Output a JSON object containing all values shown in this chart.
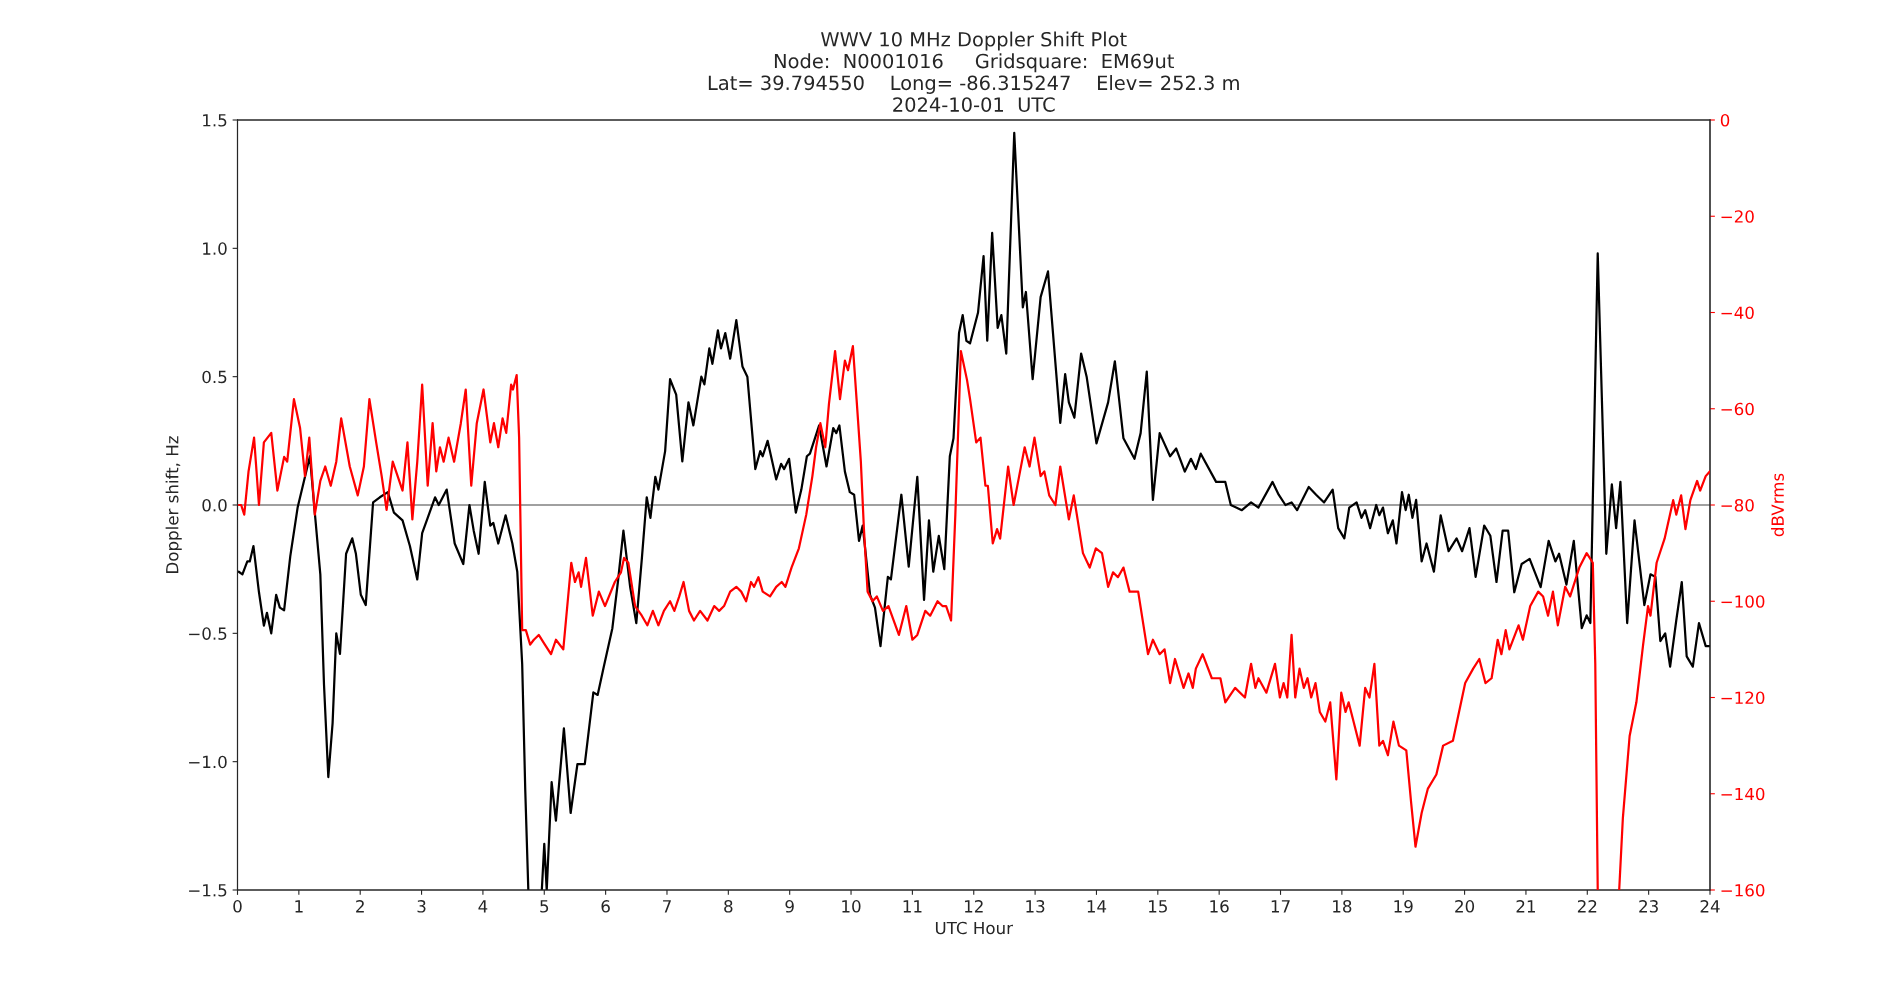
{
  "chart_data": {
    "type": "line",
    "title": "WWV 10 MHz Doppler Shift Plot\nNode:  N0001016     Gridsquare:  EM69ut\nLat= 39.794550    Long= -86.315247    Elev= 252.3 m\n2024-10-01  UTC",
    "xlabel": "UTC Hour",
    "ylabel": "Doppler shift, Hz",
    "y2label": "dBVrms",
    "xlim": [
      0,
      24
    ],
    "xticks": [
      0,
      1,
      2,
      3,
      4,
      5,
      6,
      7,
      8,
      9,
      10,
      11,
      12,
      13,
      14,
      15,
      16,
      17,
      18,
      19,
      20,
      21,
      22,
      23,
      24
    ],
    "ylim": [
      -1.5,
      1.5
    ],
    "yticks": [
      {
        "value": -1.5,
        "label": "−1.5"
      },
      {
        "value": -1.0,
        "label": "−1.0"
      },
      {
        "value": -0.5,
        "label": "−0.5"
      },
      {
        "value": 0,
        "label": "0.0"
      },
      {
        "value": 0.5,
        "label": "0.5"
      },
      {
        "value": 1.0,
        "label": "1.0"
      },
      {
        "value": 1.5,
        "label": "1.5"
      }
    ],
    "y2lim": [
      -160,
      0
    ],
    "y2ticks": [
      {
        "value": -160,
        "label": "−160"
      },
      {
        "value": -140,
        "label": "−140"
      },
      {
        "value": -120,
        "label": "−120"
      },
      {
        "value": -100,
        "label": "−100"
      },
      {
        "value": -80,
        "label": "−80"
      },
      {
        "value": -60,
        "label": "−60"
      },
      {
        "value": -40,
        "label": "−40"
      },
      {
        "value": -20,
        "label": "−20"
      },
      {
        "value": 0,
        "label": "0"
      }
    ],
    "ref_lines": [
      {
        "axis": "y",
        "value": 0,
        "color": "#808080"
      }
    ],
    "grid": false,
    "legend": false,
    "marker": "none",
    "line_style": "solid",
    "series": [
      {
        "color": "#000000",
        "x": [
          0.02,
          0.08,
          0.16,
          0.2,
          0.26,
          0.35,
          0.43,
          0.48,
          0.55,
          0.63,
          0.69,
          0.76,
          0.86,
          0.98,
          1.1,
          1.18,
          1.26,
          1.35,
          1.41,
          1.48,
          1.55,
          1.61,
          1.67,
          1.77,
          1.87,
          1.93,
          2.01,
          2.09,
          2.21,
          2.32,
          2.45,
          2.55,
          2.69,
          2.81,
          2.93,
          3.01,
          3.1,
          3.22,
          3.28,
          3.41,
          3.54,
          3.68,
          3.78,
          3.85,
          3.93,
          4.03,
          4.12,
          4.17,
          4.25,
          4.37,
          4.48,
          4.56,
          4.64,
          4.69,
          4.74,
          4.85,
          4.96,
          5.0,
          5.04,
          5.12,
          5.19,
          5.32,
          5.43,
          5.54,
          5.66,
          5.8,
          5.87,
          5.97,
          6.11,
          6.2,
          6.29,
          6.4,
          6.5,
          6.59,
          6.67,
          6.73,
          6.81,
          6.86,
          6.97,
          7.05,
          7.15,
          7.25,
          7.35,
          7.43,
          7.56,
          7.61,
          7.69,
          7.74,
          7.83,
          7.88,
          7.95,
          8.03,
          8.13,
          8.23,
          8.31,
          8.44,
          8.52,
          8.56,
          8.64,
          8.78,
          8.86,
          8.91,
          8.99,
          9.1,
          9.19,
          9.28,
          9.33,
          9.48,
          9.6,
          9.71,
          9.76,
          9.81,
          9.9,
          9.98,
          10.05,
          10.13,
          10.19,
          10.31,
          10.39,
          10.48,
          10.6,
          10.65,
          10.82,
          10.94,
          11.08,
          11.19,
          11.27,
          11.34,
          11.43,
          11.52,
          11.61,
          11.67,
          11.76,
          11.82,
          11.88,
          11.94,
          12.07,
          12.16,
          12.22,
          12.3,
          12.39,
          12.45,
          12.53,
          12.66,
          12.8,
          12.85,
          12.96,
          13.09,
          13.21,
          13.41,
          13.49,
          13.55,
          13.64,
          13.75,
          13.84,
          14.0,
          14.19,
          14.3,
          14.44,
          14.62,
          14.72,
          14.82,
          14.92,
          15.03,
          15.2,
          15.3,
          15.44,
          15.54,
          15.62,
          15.7,
          15.95,
          16.1,
          16.19,
          16.37,
          16.52,
          16.64,
          16.87,
          16.97,
          17.08,
          17.18,
          17.27,
          17.46,
          17.58,
          17.71,
          17.85,
          17.94,
          18.04,
          18.12,
          18.24,
          18.32,
          18.38,
          18.46,
          18.56,
          18.61,
          18.67,
          18.75,
          18.83,
          18.89,
          18.98,
          19.04,
          19.09,
          19.15,
          19.21,
          19.3,
          19.38,
          19.5,
          19.61,
          19.74,
          19.87,
          19.96,
          20.08,
          20.18,
          20.32,
          20.42,
          20.52,
          20.62,
          20.71,
          20.81,
          20.93,
          21.06,
          21.24,
          21.37,
          21.48,
          21.54,
          21.66,
          21.78,
          21.91,
          21.99,
          22.05,
          22.17,
          22.31,
          22.4,
          22.47,
          22.54,
          22.65,
          22.77,
          22.93,
          23.03,
          23.11,
          23.19,
          23.27,
          23.35,
          23.45,
          23.54,
          23.62,
          23.72,
          23.82,
          23.93,
          24.0
        ],
        "values": [
          -0.26,
          -0.27,
          -0.22,
          -0.22,
          -0.16,
          -0.34,
          -0.47,
          -0.42,
          -0.5,
          -0.35,
          -0.4,
          -0.41,
          -0.2,
          -0.01,
          0.11,
          0.19,
          -0.03,
          -0.27,
          -0.7,
          -1.06,
          -0.85,
          -0.5,
          -0.58,
          -0.19,
          -0.13,
          -0.19,
          -0.35,
          -0.39,
          0.01,
          0.03,
          0.05,
          -0.03,
          -0.06,
          -0.16,
          -0.29,
          -0.11,
          -0.05,
          0.03,
          0.0,
          0.06,
          -0.15,
          -0.23,
          0.0,
          -0.1,
          -0.19,
          0.09,
          -0.08,
          -0.07,
          -0.15,
          -0.04,
          -0.15,
          -0.26,
          -0.62,
          -1.11,
          -1.5,
          null,
          -1.5,
          -1.32,
          -1.5,
          -1.08,
          -1.23,
          -0.87,
          -1.2,
          -1.01,
          -1.01,
          -0.73,
          -0.74,
          -0.63,
          -0.48,
          -0.3,
          -0.1,
          -0.32,
          -0.46,
          -0.21,
          0.03,
          -0.05,
          0.11,
          0.06,
          0.21,
          0.49,
          0.43,
          0.17,
          0.4,
          0.31,
          0.5,
          0.47,
          0.61,
          0.55,
          0.68,
          0.61,
          0.67,
          0.57,
          0.72,
          0.54,
          0.5,
          0.14,
          0.21,
          0.19,
          0.25,
          0.1,
          0.16,
          0.14,
          0.18,
          -0.03,
          0.06,
          0.19,
          0.2,
          0.31,
          0.15,
          0.3,
          0.28,
          0.31,
          0.13,
          0.05,
          0.04,
          -0.14,
          -0.08,
          -0.35,
          -0.4,
          -0.55,
          -0.28,
          -0.29,
          0.04,
          -0.24,
          0.11,
          -0.37,
          -0.06,
          -0.26,
          -0.12,
          -0.25,
          0.19,
          0.26,
          0.67,
          0.74,
          0.64,
          0.63,
          0.75,
          0.97,
          0.64,
          1.06,
          0.69,
          0.74,
          0.59,
          1.45,
          0.77,
          0.83,
          0.49,
          0.81,
          0.91,
          0.32,
          0.51,
          0.4,
          0.34,
          0.59,
          0.5,
          0.24,
          0.4,
          0.56,
          0.26,
          0.18,
          0.28,
          0.52,
          0.02,
          0.28,
          0.19,
          0.22,
          0.13,
          0.18,
          0.14,
          0.2,
          0.09,
          0.09,
          0.0,
          -0.02,
          0.01,
          -0.01,
          0.09,
          0.04,
          0.0,
          0.01,
          -0.02,
          0.07,
          0.04,
          0.01,
          0.06,
          -0.09,
          -0.13,
          -0.01,
          0.01,
          -0.05,
          -0.02,
          -0.09,
          0.0,
          -0.04,
          -0.01,
          -0.11,
          -0.06,
          -0.15,
          0.05,
          -0.02,
          0.04,
          -0.05,
          0.02,
          -0.22,
          -0.15,
          -0.26,
          -0.04,
          -0.18,
          -0.13,
          -0.18,
          -0.09,
          -0.28,
          -0.08,
          -0.12,
          -0.3,
          -0.1,
          -0.1,
          -0.34,
          -0.23,
          -0.21,
          -0.32,
          -0.14,
          -0.22,
          -0.19,
          -0.31,
          -0.14,
          -0.48,
          -0.43,
          -0.46,
          0.98,
          -0.19,
          0.08,
          -0.09,
          0.09,
          -0.46,
          -0.06,
          -0.39,
          -0.27,
          -0.28,
          -0.53,
          -0.5,
          -0.63,
          -0.45,
          -0.3,
          -0.59,
          -0.63,
          -0.46,
          -0.55,
          -0.55
        ]
      },
      {
        "color": "#ff0000",
        "axis": "y2",
        "x": [
          0.02,
          0.06,
          0.11,
          0.18,
          0.27,
          0.35,
          0.43,
          0.49,
          0.55,
          0.65,
          0.76,
          0.81,
          0.92,
          1.02,
          1.1,
          1.17,
          1.26,
          1.35,
          1.43,
          1.52,
          1.61,
          1.69,
          1.83,
          1.96,
          2.06,
          2.15,
          2.26,
          2.35,
          2.43,
          2.53,
          2.69,
          2.77,
          2.85,
          2.93,
          3.01,
          3.1,
          3.18,
          3.24,
          3.3,
          3.36,
          3.44,
          3.53,
          3.64,
          3.72,
          3.81,
          3.9,
          4.01,
          4.12,
          4.18,
          4.25,
          4.32,
          4.38,
          4.46,
          4.49,
          4.55,
          4.59,
          4.64,
          4.7,
          4.77,
          4.83,
          4.91,
          5.01,
          5.11,
          5.19,
          5.31,
          5.44,
          5.5,
          5.56,
          5.6,
          5.68,
          5.79,
          5.89,
          5.99,
          6.15,
          6.25,
          6.3,
          6.37,
          6.48,
          6.59,
          6.68,
          6.77,
          6.86,
          6.95,
          7.05,
          7.12,
          7.2,
          7.27,
          7.36,
          7.44,
          7.54,
          7.66,
          7.77,
          7.85,
          7.93,
          8.03,
          8.13,
          8.21,
          8.29,
          8.37,
          8.42,
          8.49,
          8.56,
          8.68,
          8.78,
          8.87,
          8.93,
          9.03,
          9.15,
          9.27,
          9.37,
          9.43,
          9.5,
          9.58,
          9.64,
          9.74,
          9.82,
          9.9,
          9.95,
          10.03,
          10.09,
          10.16,
          10.21,
          10.27,
          10.35,
          10.42,
          10.52,
          10.61,
          10.78,
          10.9,
          11.0,
          11.08,
          11.21,
          11.29,
          11.41,
          11.49,
          11.55,
          11.63,
          11.7,
          11.79,
          11.89,
          11.94,
          12.04,
          12.11,
          12.19,
          12.23,
          12.31,
          12.38,
          12.43,
          12.56,
          12.65,
          12.74,
          12.83,
          12.91,
          12.99,
          13.09,
          13.15,
          13.23,
          13.33,
          13.41,
          13.55,
          13.63,
          13.78,
          13.89,
          13.99,
          14.09,
          14.19,
          14.27,
          14.35,
          14.44,
          14.54,
          14.68,
          14.84,
          14.92,
          15.03,
          15.11,
          15.2,
          15.28,
          15.42,
          15.5,
          15.57,
          15.62,
          15.73,
          15.88,
          16.02,
          16.1,
          16.26,
          16.42,
          16.52,
          16.59,
          16.64,
          16.77,
          16.91,
          16.99,
          17.05,
          17.11,
          17.18,
          17.24,
          17.31,
          17.38,
          17.44,
          17.5,
          17.57,
          17.64,
          17.73,
          17.81,
          17.91,
          17.99,
          18.06,
          18.11,
          18.19,
          18.29,
          18.38,
          18.45,
          18.53,
          18.61,
          18.67,
          18.75,
          18.84,
          18.93,
          19.05,
          19.13,
          19.2,
          19.3,
          19.4,
          19.54,
          19.65,
          19.81,
          20.01,
          20.14,
          20.24,
          20.34,
          20.44,
          20.54,
          20.6,
          20.67,
          20.73,
          20.88,
          20.95,
          21.07,
          21.2,
          21.28,
          21.36,
          21.44,
          21.52,
          21.64,
          21.72,
          21.87,
          21.99,
          22.09,
          22.13,
          22.17,
          22.35,
          22.52,
          22.58,
          22.69,
          22.8,
          22.91,
          22.99,
          23.03,
          23.13,
          23.26,
          23.4,
          23.45,
          23.53,
          23.6,
          23.68,
          23.79,
          23.84,
          23.93,
          24.0
        ],
        "values": [
          -80,
          -80,
          -82,
          -73,
          -66,
          -80,
          -67,
          -66,
          -65,
          -77,
          -70,
          -71,
          -58,
          -64,
          -74,
          -66,
          -82,
          -75,
          -72,
          -76,
          -71,
          -62,
          -72,
          -78,
          -72,
          -58,
          -67,
          -74,
          -81,
          -71,
          -77,
          -67,
          -83,
          -71,
          -55,
          -76,
          -63,
          -73,
          -68,
          -71,
          -66,
          -71,
          -63,
          -56,
          -76,
          -63,
          -56,
          -67,
          -63,
          -68,
          -62,
          -65,
          -55,
          -56,
          -53,
          -66,
          -106,
          -106,
          -109,
          -108,
          -107,
          -109,
          -111,
          -108,
          -110,
          -92,
          -96,
          -94,
          -97,
          -91,
          -103,
          -98,
          -101,
          -96,
          -94,
          -91,
          -92,
          -101,
          -103,
          -105,
          -102,
          -105,
          -102,
          -100,
          -102,
          -99,
          -96,
          -102,
          -104,
          -102,
          -104,
          -101,
          -102,
          -101,
          -98,
          -97,
          -98,
          -100,
          -96,
          -97,
          -95,
          -98,
          -99,
          -97,
          -96,
          -97,
          -93,
          -89,
          -82,
          -74,
          -68,
          -63,
          -68,
          -59,
          -48,
          -58,
          -50,
          -52,
          -47,
          -58,
          -71,
          -85,
          -98,
          -100,
          -99,
          -102,
          -101,
          -107,
          -101,
          -108,
          -107,
          -102,
          -103,
          -100,
          -101,
          -101,
          -104,
          -82,
          -48,
          -54,
          -58,
          -67,
          -66,
          -76,
          -76,
          -88,
          -85,
          -87,
          -72,
          -80,
          -74,
          -68,
          -72,
          -66,
          -74,
          -73,
          -78,
          -80,
          -72,
          -83,
          -78,
          -90,
          -93,
          -89,
          -90,
          -97,
          -94,
          -95,
          -93,
          -98,
          -98,
          -111,
          -108,
          -111,
          -110,
          -117,
          -112,
          -118,
          -115,
          -118,
          -114,
          -111,
          -116,
          -116,
          -121,
          -118,
          -120,
          -113,
          -118,
          -116,
          -119,
          -113,
          -120,
          -117,
          -120,
          -107,
          -120,
          -114,
          -118,
          -116,
          -120,
          -117,
          -123,
          -125,
          -121,
          -137,
          -119,
          -123,
          -121,
          -125,
          -130,
          -118,
          -120,
          -113,
          -130,
          -129,
          -132,
          -125,
          -130,
          -131,
          -142,
          -151,
          -144,
          -139,
          -136,
          -130,
          -129,
          -117,
          -114,
          -112,
          -117,
          -116,
          -108,
          -111,
          -106,
          -110,
          -105,
          -108,
          -101,
          -98,
          -99,
          -103,
          -98,
          -105,
          -97,
          -99,
          -93,
          -90,
          -92,
          -113,
          -160,
          null,
          -160,
          -145,
          -128,
          -121,
          -109,
          -101,
          -103,
          -92,
          -87,
          -79,
          -82,
          -78,
          -85,
          -79,
          -75,
          -77,
          -74,
          -73
        ]
      }
    ]
  }
}
